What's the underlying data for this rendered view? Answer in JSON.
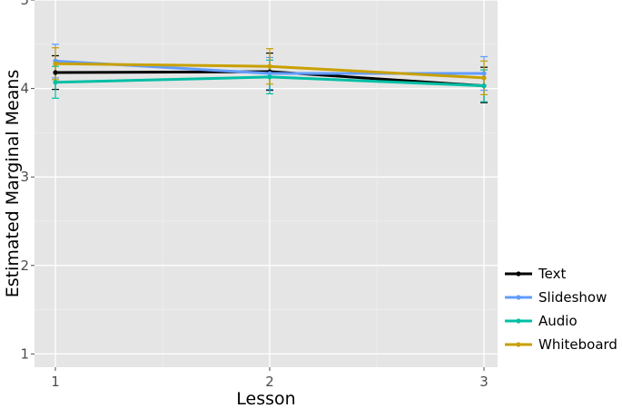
{
  "chart_data": {
    "type": "line",
    "xlabel": "Lesson",
    "ylabel": "Estimated Marginal Means",
    "x": [
      "1",
      "2",
      "3"
    ],
    "ylim": [
      0.85,
      5.0
    ],
    "yticks": [
      "1",
      "2",
      "3",
      "4",
      "5"
    ],
    "grid": true,
    "legend_position": "right",
    "series": [
      {
        "name": "Text",
        "color": "#000000",
        "values": [
          4.18,
          4.19,
          4.03
        ],
        "lower": [
          3.99,
          3.98,
          3.84
        ],
        "upper": [
          4.37,
          4.4,
          4.24
        ]
      },
      {
        "name": "Slideshow",
        "color": "#619cff",
        "values": [
          4.31,
          4.17,
          4.17
        ],
        "lower": [
          4.12,
          3.99,
          3.98
        ],
        "upper": [
          4.5,
          4.35,
          4.36
        ]
      },
      {
        "name": "Audio",
        "color": "#00bfa5",
        "values": [
          4.07,
          4.13,
          4.03
        ],
        "lower": [
          3.89,
          3.94,
          3.85
        ],
        "upper": [
          4.25,
          4.32,
          4.21
        ]
      },
      {
        "name": "Whiteboard",
        "color": "#c8a000",
        "values": [
          4.28,
          4.25,
          4.12
        ],
        "lower": [
          4.1,
          4.05,
          3.93
        ],
        "upper": [
          4.46,
          4.45,
          4.31
        ]
      }
    ]
  }
}
